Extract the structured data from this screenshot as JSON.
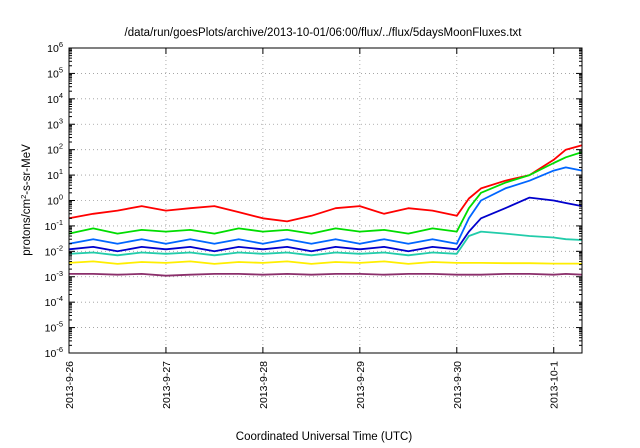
{
  "chart_data": {
    "type": "line",
    "title": "/data/run/goesPlots/archive/2013-10-01/06:00/flux/../flux/5daysMoonFluxes.txt",
    "xlabel": "Coordinated Universal Time (UTC)",
    "ylabel": "protons/cm²-s-sr-MeV",
    "ylabel_parts": [
      "protons/cm",
      "2",
      "-s-sr-MeV"
    ],
    "y_scale": "log",
    "ylim": [
      1e-06,
      1000000.0
    ],
    "y_ticks": [
      {
        "base": "10",
        "exp": "-6"
      },
      {
        "base": "10",
        "exp": "-5"
      },
      {
        "base": "10",
        "exp": "-4"
      },
      {
        "base": "10",
        "exp": "-3"
      },
      {
        "base": "10",
        "exp": "-2"
      },
      {
        "base": "10",
        "exp": "-1"
      },
      {
        "base": "10",
        "exp": "0"
      },
      {
        "base": "10",
        "exp": "1"
      },
      {
        "base": "10",
        "exp": "2"
      },
      {
        "base": "10",
        "exp": "3"
      },
      {
        "base": "10",
        "exp": "4"
      },
      {
        "base": "10",
        "exp": "5"
      },
      {
        "base": "10",
        "exp": "6"
      }
    ],
    "xlim": [
      "2013-09-26 00:00",
      "2013-10-01 07:00"
    ],
    "x_ticks": [
      "2013-9-26",
      "2013-9-27",
      "2013-9-28",
      "2013-9-29",
      "2013-9-30",
      "2013-10-1"
    ],
    "grid": true,
    "legend": "none",
    "series": [
      {
        "color": "#ff0000",
        "x": [
          "2013-09-26 00:00",
          "2013-09-26 06:00",
          "2013-09-26 12:00",
          "2013-09-26 18:00",
          "2013-09-27 00:00",
          "2013-09-27 06:00",
          "2013-09-27 12:00",
          "2013-09-27 18:00",
          "2013-09-28 00:00",
          "2013-09-28 06:00",
          "2013-09-28 12:00",
          "2013-09-28 18:00",
          "2013-09-29 00:00",
          "2013-09-29 06:00",
          "2013-09-29 12:00",
          "2013-09-29 18:00",
          "2013-09-30 00:00",
          "2013-09-30 03:00",
          "2013-09-30 06:00",
          "2013-09-30 12:00",
          "2013-09-30 18:00",
          "2013-10-01 00:00",
          "2013-10-01 03:00",
          "2013-10-01 07:00"
        ],
        "values": [
          0.2,
          0.3,
          0.4,
          0.6,
          0.4,
          0.5,
          0.6,
          0.35,
          0.2,
          0.15,
          0.25,
          0.5,
          0.6,
          0.3,
          0.5,
          0.4,
          0.25,
          1.2,
          3,
          6,
          10,
          40,
          100,
          150
        ]
      },
      {
        "color": "#00dd00",
        "x": [
          "2013-09-26 00:00",
          "2013-09-26 06:00",
          "2013-09-26 12:00",
          "2013-09-26 18:00",
          "2013-09-27 00:00",
          "2013-09-27 06:00",
          "2013-09-27 12:00",
          "2013-09-27 18:00",
          "2013-09-28 00:00",
          "2013-09-28 06:00",
          "2013-09-28 12:00",
          "2013-09-28 18:00",
          "2013-09-29 00:00",
          "2013-09-29 06:00",
          "2013-09-29 12:00",
          "2013-09-29 18:00",
          "2013-09-30 00:00",
          "2013-09-30 03:00",
          "2013-09-30 06:00",
          "2013-09-30 12:00",
          "2013-09-30 18:00",
          "2013-10-01 00:00",
          "2013-10-01 03:00",
          "2013-10-01 07:00"
        ],
        "values": [
          0.05,
          0.08,
          0.05,
          0.07,
          0.06,
          0.07,
          0.05,
          0.08,
          0.06,
          0.07,
          0.05,
          0.08,
          0.06,
          0.07,
          0.05,
          0.08,
          0.06,
          0.5,
          2,
          5,
          10,
          30,
          50,
          80
        ]
      },
      {
        "color": "#0066ff",
        "x": [
          "2013-09-26 00:00",
          "2013-09-26 06:00",
          "2013-09-26 12:00",
          "2013-09-26 18:00",
          "2013-09-27 00:00",
          "2013-09-27 06:00",
          "2013-09-27 12:00",
          "2013-09-27 18:00",
          "2013-09-28 00:00",
          "2013-09-28 06:00",
          "2013-09-28 12:00",
          "2013-09-28 18:00",
          "2013-09-29 00:00",
          "2013-09-29 06:00",
          "2013-09-29 12:00",
          "2013-09-29 18:00",
          "2013-09-30 00:00",
          "2013-09-30 03:00",
          "2013-09-30 06:00",
          "2013-09-30 12:00",
          "2013-09-30 18:00",
          "2013-10-01 00:00",
          "2013-10-01 03:00",
          "2013-10-01 07:00"
        ],
        "values": [
          0.02,
          0.03,
          0.02,
          0.03,
          0.02,
          0.03,
          0.02,
          0.03,
          0.02,
          0.03,
          0.02,
          0.03,
          0.02,
          0.03,
          0.02,
          0.03,
          0.02,
          0.2,
          1,
          3,
          6,
          15,
          20,
          15
        ]
      },
      {
        "color": "#0000cc",
        "x": [
          "2013-09-26 00:00",
          "2013-09-26 06:00",
          "2013-09-26 12:00",
          "2013-09-26 18:00",
          "2013-09-27 00:00",
          "2013-09-27 06:00",
          "2013-09-27 12:00",
          "2013-09-27 18:00",
          "2013-09-28 00:00",
          "2013-09-28 06:00",
          "2013-09-28 12:00",
          "2013-09-28 18:00",
          "2013-09-29 00:00",
          "2013-09-29 06:00",
          "2013-09-29 12:00",
          "2013-09-29 18:00",
          "2013-09-30 00:00",
          "2013-09-30 03:00",
          "2013-09-30 06:00",
          "2013-09-30 12:00",
          "2013-09-30 18:00",
          "2013-10-01 00:00",
          "2013-10-01 03:00",
          "2013-10-01 07:00"
        ],
        "values": [
          0.012,
          0.015,
          0.01,
          0.015,
          0.012,
          0.015,
          0.01,
          0.015,
          0.012,
          0.015,
          0.01,
          0.015,
          0.012,
          0.015,
          0.01,
          0.015,
          0.012,
          0.06,
          0.2,
          0.5,
          1.3,
          1,
          0.8,
          0.6
        ]
      },
      {
        "color": "#22ccaa",
        "x": [
          "2013-09-26 00:00",
          "2013-09-26 06:00",
          "2013-09-26 12:00",
          "2013-09-26 18:00",
          "2013-09-27 00:00",
          "2013-09-27 06:00",
          "2013-09-27 12:00",
          "2013-09-27 18:00",
          "2013-09-28 00:00",
          "2013-09-28 06:00",
          "2013-09-28 12:00",
          "2013-09-28 18:00",
          "2013-09-29 00:00",
          "2013-09-29 06:00",
          "2013-09-29 12:00",
          "2013-09-29 18:00",
          "2013-09-30 00:00",
          "2013-09-30 03:00",
          "2013-09-30 06:00",
          "2013-09-30 12:00",
          "2013-09-30 18:00",
          "2013-10-01 00:00",
          "2013-10-01 03:00",
          "2013-10-01 07:00"
        ],
        "values": [
          0.008,
          0.009,
          0.007,
          0.009,
          0.008,
          0.009,
          0.007,
          0.009,
          0.008,
          0.009,
          0.007,
          0.009,
          0.008,
          0.009,
          0.007,
          0.009,
          0.008,
          0.04,
          0.06,
          0.05,
          0.04,
          0.035,
          0.03,
          0.028
        ]
      },
      {
        "color": "#ffee00",
        "x": [
          "2013-09-26 00:00",
          "2013-09-26 06:00",
          "2013-09-26 12:00",
          "2013-09-26 18:00",
          "2013-09-27 00:00",
          "2013-09-27 06:00",
          "2013-09-27 12:00",
          "2013-09-27 18:00",
          "2013-09-28 00:00",
          "2013-09-28 06:00",
          "2013-09-28 12:00",
          "2013-09-28 18:00",
          "2013-09-29 00:00",
          "2013-09-29 06:00",
          "2013-09-29 12:00",
          "2013-09-29 18:00",
          "2013-09-30 00:00",
          "2013-09-30 03:00",
          "2013-09-30 06:00",
          "2013-09-30 12:00",
          "2013-09-30 18:00",
          "2013-10-01 00:00",
          "2013-10-01 03:00",
          "2013-10-01 07:00"
        ],
        "values": [
          0.0035,
          0.004,
          0.0032,
          0.0038,
          0.0035,
          0.004,
          0.0032,
          0.0038,
          0.0035,
          0.004,
          0.0032,
          0.0038,
          0.0035,
          0.004,
          0.0032,
          0.0038,
          0.0035,
          0.0035,
          0.0035,
          0.0034,
          0.0034,
          0.0033,
          0.0033,
          0.0033
        ]
      },
      {
        "color": "#8b2f6b",
        "x": [
          "2013-09-26 00:00",
          "2013-09-26 06:00",
          "2013-09-26 12:00",
          "2013-09-26 18:00",
          "2013-09-27 00:00",
          "2013-09-27 06:00",
          "2013-09-27 12:00",
          "2013-09-27 18:00",
          "2013-09-28 00:00",
          "2013-09-28 06:00",
          "2013-09-28 12:00",
          "2013-09-28 18:00",
          "2013-09-29 00:00",
          "2013-09-29 06:00",
          "2013-09-29 12:00",
          "2013-09-29 18:00",
          "2013-09-30 00:00",
          "2013-09-30 03:00",
          "2013-09-30 06:00",
          "2013-09-30 12:00",
          "2013-09-30 18:00",
          "2013-10-01 00:00",
          "2013-10-01 03:00",
          "2013-10-01 07:00"
        ],
        "values": [
          0.0013,
          0.0013,
          0.0012,
          0.0013,
          0.0011,
          0.0012,
          0.0013,
          0.0013,
          0.0012,
          0.0013,
          0.0012,
          0.0013,
          0.0013,
          0.0012,
          0.0013,
          0.0013,
          0.0012,
          0.0012,
          0.0012,
          0.0013,
          0.0013,
          0.0012,
          0.0013,
          0.0012
        ]
      }
    ]
  }
}
